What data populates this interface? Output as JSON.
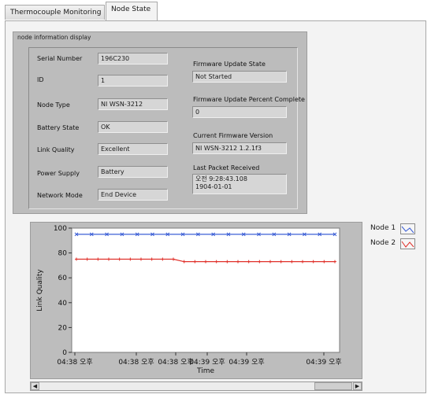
{
  "tabs": [
    {
      "label": "Thermocouple Monitoring",
      "active": false
    },
    {
      "label": "Node State",
      "active": true
    }
  ],
  "panel_title": "node information display",
  "fields": {
    "serial_number": {
      "label": "Serial Number",
      "value": "196C230"
    },
    "id": {
      "label": "ID",
      "value": "1"
    },
    "node_type": {
      "label": "Node Type",
      "value": "NI WSN-3212"
    },
    "battery_state": {
      "label": "Battery State",
      "value": "OK"
    },
    "link_quality": {
      "label": "Link Quality",
      "value": "Excellent"
    },
    "power_supply": {
      "label": "Power Supply",
      "value": "Battery"
    },
    "network_mode": {
      "label": "Network Mode",
      "value": "End Device"
    },
    "fw_update_state": {
      "label": "Firmware Update State",
      "value": "Not Started"
    },
    "fw_update_percent": {
      "label": "Firmware Update Percent  Complete",
      "value": "0"
    },
    "current_fw": {
      "label": "Current Firmware Version",
      "value": "NI WSN-3212 1.2.1f3"
    },
    "last_packet": {
      "label": "Last Packet Received",
      "value_line1": "오전 9:28:43.108",
      "value_line2": "1904-01-01"
    }
  },
  "colors": {
    "node1": "#3c5fd6",
    "node2": "#e0302a"
  },
  "chart_data": {
    "type": "line",
    "xlabel": "Time",
    "ylabel": "Link Quality",
    "ylim": [
      0,
      100
    ],
    "yticks": [
      "100",
      "80",
      "60",
      "40",
      "20",
      "0"
    ],
    "xticks": [
      "04:38 오후",
      "04:38 오후",
      "04:38 오후",
      "04:39 오후",
      "04:39 오후",
      "04:39 오후"
    ],
    "grid": false,
    "legend": "right",
    "series": [
      {
        "name": "Node 1",
        "values": [
          95,
          95,
          95,
          95,
          95,
          95,
          95,
          95,
          95,
          95,
          95,
          95,
          95,
          95,
          95,
          95,
          95,
          95
        ]
      },
      {
        "name": "Node 2",
        "values": [
          75,
          75,
          75,
          75,
          75,
          75,
          75,
          75,
          75,
          75,
          73,
          73,
          73,
          73,
          73,
          73,
          73,
          73,
          73,
          73,
          73,
          73,
          73,
          73,
          73
        ]
      }
    ]
  }
}
